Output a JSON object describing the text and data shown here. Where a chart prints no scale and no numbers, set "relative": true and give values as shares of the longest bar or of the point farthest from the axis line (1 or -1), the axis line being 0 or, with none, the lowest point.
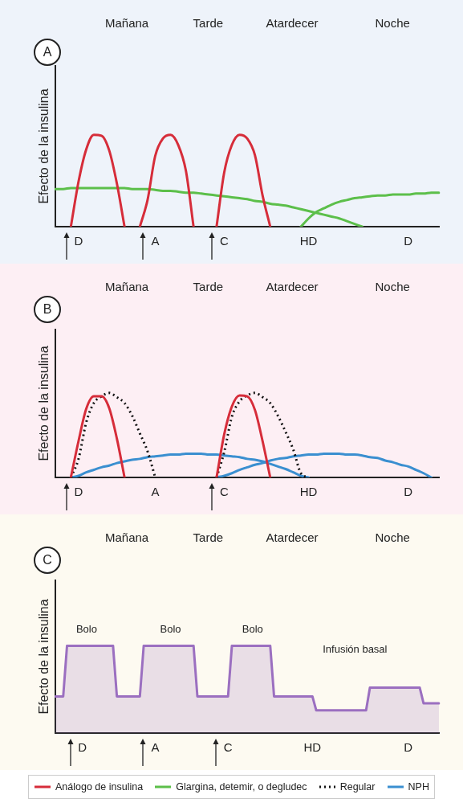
{
  "chart_data": [
    {
      "type": "line",
      "title": "A",
      "ylabel": "Efecto de la insulina",
      "relative": true,
      "grid": false,
      "legend": "bottom",
      "marker": "none",
      "categories": [
        null,
        null,
        null,
        "D",
        null,
        null,
        null,
        null,
        null,
        null,
        null,
        null,
        null,
        "A",
        null,
        null,
        null,
        null,
        null,
        null,
        null,
        null,
        "C",
        null,
        null,
        null,
        null,
        null,
        null,
        null,
        null,
        null,
        null,
        "HD",
        null,
        null,
        null,
        null,
        null,
        null,
        null,
        null,
        null,
        null,
        null,
        null,
        "D",
        null,
        null,
        null,
        null
      ],
      "annotations": [
        "Mañana",
        "Tarde",
        "Atardecer",
        "Noche"
      ],
      "series": [
        {
          "name": "Análogo de insulina",
          "color": "#d62d3a",
          "values": [
            null,
            null,
            0,
            0.49,
            0.84,
            1,
            0.99,
            0.83,
            0.47,
            0,
            null,
            0,
            0.29,
            0.77,
            0.96,
            1,
            0.89,
            0.61,
            0,
            null,
            null,
            0,
            0.59,
            0.89,
            1,
            0.96,
            0.78,
            0.34,
            0,
            null,
            null,
            null,
            null,
            null,
            null,
            null,
            null,
            null,
            null,
            null,
            null,
            null,
            null,
            null,
            null,
            null,
            null,
            null,
            null,
            null,
            null
          ]
        },
        {
          "name": "Glargina, detemir, o degludec",
          "color": "#5cbf4a",
          "values": [
            0.41,
            0.41,
            0.42,
            0.42,
            0.42,
            0.42,
            0.42,
            0.42,
            0.42,
            0.42,
            0.41,
            0.41,
            0.41,
            0.4,
            0.39,
            0.39,
            0.38,
            0.37,
            0.37,
            0.36,
            0.35,
            0.34,
            0.33,
            0.32,
            0.31,
            0.3,
            0.28,
            0.27,
            0.25,
            0.24,
            0.23,
            0.21,
            0.19,
            0.17,
            0.15,
            0.13,
            0.11,
            0.09,
            0.06,
            0.03,
            0,
            null,
            null,
            null,
            null,
            null,
            null,
            null,
            null,
            null,
            null
          ]
        },
        {
          "color": "#5cbf4a",
          "values": [
            null,
            null,
            null,
            null,
            null,
            null,
            null,
            null,
            null,
            null,
            null,
            null,
            null,
            null,
            null,
            null,
            null,
            null,
            null,
            null,
            null,
            null,
            null,
            null,
            null,
            null,
            null,
            null,
            null,
            null,
            null,
            null,
            0,
            0.09,
            0.16,
            0.2,
            0.24,
            0.27,
            0.29,
            0.31,
            0.32,
            0.33,
            0.34,
            0.34,
            0.35,
            0.35,
            0.35,
            0.36,
            0.36,
            0.37,
            0.37
          ]
        }
      ]
    },
    {
      "type": "line",
      "title": "B",
      "ylabel": "Efecto de la insulina",
      "relative": true,
      "grid": false,
      "legend": "bottom",
      "marker": "none",
      "categories": [
        null,
        null,
        null,
        "D",
        null,
        null,
        null,
        null,
        null,
        null,
        null,
        null,
        null,
        "A",
        null,
        null,
        null,
        null,
        null,
        null,
        null,
        null,
        "C",
        null,
        null,
        null,
        null,
        null,
        null,
        null,
        null,
        null,
        null,
        "HD",
        null,
        null,
        null,
        null,
        null,
        null,
        null,
        null,
        null,
        null,
        null,
        null,
        "D",
        null,
        null,
        null,
        null
      ],
      "annotations": [
        "Mañana",
        "Tarde",
        "Atardecer",
        "Noche"
      ],
      "series": [
        {
          "name": "Análogo de insulina",
          "color": "#d62d3a",
          "values": [
            null,
            null,
            0,
            0.43,
            0.81,
            0.96,
            0.96,
            0.82,
            0.46,
            0,
            null,
            null,
            null,
            null,
            null,
            null,
            null,
            null,
            null,
            null,
            null,
            0,
            0.51,
            0.84,
            0.97,
            0.96,
            0.8,
            0.43,
            0,
            null,
            null,
            null,
            null,
            null,
            null,
            null,
            null,
            null,
            null,
            null,
            null,
            null,
            null,
            null,
            null,
            null,
            null,
            null,
            null,
            null,
            null
          ]
        },
        {
          "name": "Regular",
          "color": "#111111",
          "line_style": "dotted",
          "values": [
            null,
            null,
            0,
            0.22,
            0.65,
            0.88,
            0.96,
            1,
            0.95,
            0.88,
            0.73,
            0.52,
            0.31,
            0,
            null,
            null,
            null,
            null,
            null,
            null,
            null,
            0,
            0.3,
            0.72,
            0.9,
            0.97,
            1,
            0.95,
            0.88,
            0.73,
            0.54,
            0.33,
            0.05,
            0,
            null,
            null,
            null,
            null,
            null,
            null,
            null,
            null,
            null,
            null,
            null,
            null,
            null,
            null,
            null,
            null,
            null
          ]
        },
        {
          "name": "NPH",
          "color": "#3a8fd0",
          "values": [
            null,
            null,
            0,
            0.02,
            0.06,
            0.09,
            0.12,
            0.14,
            0.17,
            0.19,
            0.21,
            0.22,
            0.24,
            0.25,
            0.26,
            0.27,
            0.27,
            0.28,
            0.28,
            0.28,
            0.27,
            0.27,
            0.26,
            0.25,
            0.24,
            0.22,
            0.21,
            0.19,
            0.16,
            0.13,
            0.1,
            0.06,
            0.02,
            0,
            null,
            null,
            null,
            null,
            null,
            null,
            null,
            null,
            null,
            null,
            null,
            null,
            null,
            null,
            null,
            null,
            null
          ]
        },
        {
          "color": "#3a8fd0",
          "values": [
            null,
            null,
            null,
            null,
            null,
            null,
            null,
            null,
            null,
            null,
            null,
            null,
            null,
            null,
            null,
            null,
            null,
            null,
            null,
            null,
            null,
            0,
            0.02,
            0.05,
            0.09,
            0.12,
            0.15,
            0.17,
            0.2,
            0.22,
            0.23,
            0.25,
            0.26,
            0.27,
            0.27,
            0.28,
            0.28,
            0.28,
            0.27,
            0.27,
            0.26,
            0.24,
            0.23,
            0.2,
            0.18,
            0.15,
            0.13,
            0.09,
            0.05,
            0,
            null
          ]
        }
      ]
    },
    {
      "type": "area",
      "title": "C",
      "ylabel": "Efecto de la insulina",
      "relative": true,
      "grid": false,
      "marker": "none",
      "categories": [
        null,
        null,
        null,
        null,
        null,
        null,
        null,
        "D",
        null,
        null,
        null,
        null,
        null,
        null,
        null,
        null,
        null,
        null,
        null,
        null,
        null,
        null,
        null,
        null,
        null,
        null,
        "A",
        null,
        null,
        null,
        null,
        null,
        null,
        null,
        null,
        null,
        null,
        null,
        null,
        null,
        null,
        null,
        null,
        null,
        null,
        "C",
        null,
        null,
        null,
        null,
        null,
        null,
        null,
        null,
        null,
        null,
        null,
        null,
        null,
        null,
        null,
        null,
        null,
        null,
        null,
        null,
        null,
        "HD",
        null,
        null,
        null,
        null,
        null,
        null,
        null,
        null,
        null,
        null,
        null,
        null,
        null,
        null,
        null,
        null,
        null,
        null,
        null,
        null,
        null,
        null,
        null,
        null,
        "D",
        null,
        null,
        null,
        null,
        null,
        null,
        null,
        null
      ],
      "annotations": [
        "Mañana",
        "Tarde",
        "Atardecer",
        "Noche",
        "Bolo",
        "Bolo",
        "Bolo",
        "Infusión basal"
      ],
      "series": [
        {
          "color": "#9b6fc0",
          "values": [
            0.42,
            0.42,
            0.42,
            1,
            1,
            1,
            1,
            1,
            1,
            1,
            1,
            1,
            1,
            1,
            1,
            1,
            0.42,
            0.42,
            0.42,
            0.42,
            0.42,
            0.42,
            0.42,
            1,
            1,
            1,
            1,
            1,
            1,
            1,
            1,
            1,
            1,
            1,
            1,
            1,
            1,
            0.42,
            0.42,
            0.42,
            0.42,
            0.42,
            0.42,
            0.42,
            0.42,
            0.42,
            1,
            1,
            1,
            1,
            1,
            1,
            1,
            1,
            1,
            1,
            1,
            0.42,
            0.42,
            0.42,
            0.42,
            0.42,
            0.42,
            0.42,
            0.42,
            0.42,
            0.42,
            0.42,
            0.26,
            0.26,
            0.26,
            0.26,
            0.26,
            0.26,
            0.26,
            0.26,
            0.26,
            0.26,
            0.26,
            0.26,
            0.26,
            0.26,
            0.52,
            0.52,
            0.52,
            0.52,
            0.52,
            0.52,
            0.52,
            0.52,
            0.52,
            0.52,
            0.52,
            0.52,
            0.52,
            0.52,
            0.34,
            0.34,
            0.34,
            0.34,
            0.34
          ]
        }
      ]
    }
  ]
}
